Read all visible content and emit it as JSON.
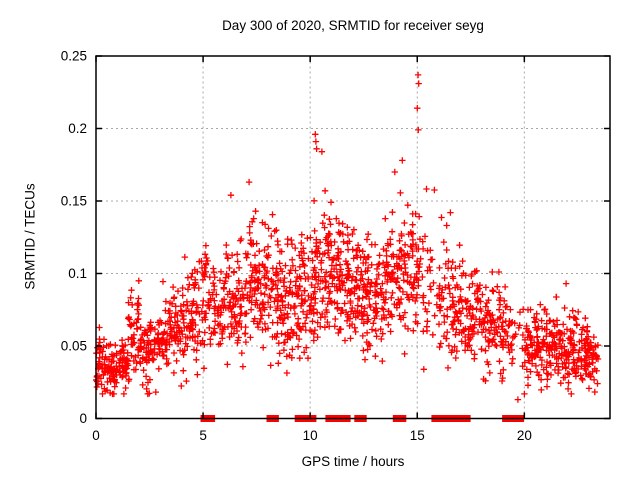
{
  "title": "Day 300 of 2020, SRMTID for receiver seyg",
  "chart_data": {
    "type": "scatter",
    "title": "Day 300 of 2020, SRMTID for receiver seyg",
    "xlabel": "GPS time / hours",
    "ylabel": "SRMTID / TECUs",
    "xlim": [
      0,
      24
    ],
    "ylim": [
      0,
      0.25
    ],
    "xticks": {
      "values": [
        0,
        5,
        10,
        15,
        20
      ],
      "labels": [
        "0",
        "5",
        "10",
        "15",
        "20"
      ]
    },
    "yticks": {
      "values": [
        0,
        0.05,
        0.1,
        0.15,
        0.2,
        0.25
      ],
      "labels": [
        "0",
        "0.05",
        "0.1",
        "0.15",
        "0.2",
        "0.25"
      ]
    },
    "grid": true,
    "legend": "none",
    "marker": "plus",
    "marker_color": "#ff0000",
    "grid_color": "#a8a8a8",
    "axis_color": "#000000",
    "background_color": "#ffffff",
    "seed": 300,
    "scatter_bins_format": [
      "hour_start",
      "hour_end",
      "count",
      "mean_TECUs",
      "sd_TECUs"
    ],
    "scatter_bins": [
      [
        0.0,
        0.5,
        48,
        0.037,
        0.01
      ],
      [
        0.5,
        1.0,
        48,
        0.033,
        0.008
      ],
      [
        1.0,
        1.5,
        48,
        0.037,
        0.009
      ],
      [
        1.5,
        2.0,
        42,
        0.055,
        0.016
      ],
      [
        2.0,
        2.5,
        40,
        0.048,
        0.012
      ],
      [
        2.5,
        3.0,
        40,
        0.052,
        0.013
      ],
      [
        3.0,
        3.5,
        40,
        0.058,
        0.014
      ],
      [
        3.5,
        4.0,
        40,
        0.064,
        0.016
      ],
      [
        4.0,
        4.5,
        42,
        0.07,
        0.017
      ],
      [
        4.5,
        5.0,
        42,
        0.075,
        0.018
      ],
      [
        5.0,
        5.5,
        34,
        0.08,
        0.018
      ],
      [
        5.5,
        6.0,
        40,
        0.076,
        0.015
      ],
      [
        6.0,
        6.5,
        42,
        0.084,
        0.02
      ],
      [
        6.5,
        7.0,
        42,
        0.08,
        0.017
      ],
      [
        7.0,
        7.5,
        45,
        0.094,
        0.022
      ],
      [
        7.5,
        8.0,
        45,
        0.09,
        0.019
      ],
      [
        8.0,
        8.5,
        45,
        0.086,
        0.021
      ],
      [
        8.5,
        9.0,
        45,
        0.077,
        0.023
      ],
      [
        9.0,
        9.5,
        45,
        0.086,
        0.02
      ],
      [
        9.5,
        10.0,
        45,
        0.091,
        0.019
      ],
      [
        10.0,
        10.5,
        50,
        0.1,
        0.024
      ],
      [
        10.5,
        11.0,
        50,
        0.104,
        0.021
      ],
      [
        11.0,
        11.5,
        50,
        0.1,
        0.021
      ],
      [
        11.5,
        12.0,
        48,
        0.095,
        0.021
      ],
      [
        12.0,
        12.5,
        45,
        0.094,
        0.021
      ],
      [
        12.5,
        13.0,
        45,
        0.09,
        0.019
      ],
      [
        13.0,
        13.5,
        45,
        0.089,
        0.019
      ],
      [
        13.5,
        14.0,
        45,
        0.094,
        0.022
      ],
      [
        14.0,
        14.5,
        45,
        0.099,
        0.024
      ],
      [
        14.5,
        15.0,
        45,
        0.104,
        0.026
      ],
      [
        15.0,
        15.5,
        28,
        0.105,
        0.032
      ],
      [
        15.5,
        16.0,
        14,
        0.09,
        0.026
      ],
      [
        16.0,
        16.5,
        36,
        0.084,
        0.021
      ],
      [
        16.5,
        17.0,
        42,
        0.08,
        0.021
      ],
      [
        17.0,
        17.5,
        40,
        0.075,
        0.017
      ],
      [
        17.5,
        18.0,
        40,
        0.072,
        0.017
      ],
      [
        18.0,
        18.5,
        40,
        0.065,
        0.015
      ],
      [
        18.5,
        19.0,
        40,
        0.062,
        0.015
      ],
      [
        19.0,
        19.5,
        30,
        0.06,
        0.014
      ],
      [
        19.5,
        20.0,
        10,
        0.055,
        0.016
      ],
      [
        20.0,
        20.5,
        42,
        0.05,
        0.013
      ],
      [
        20.5,
        21.0,
        45,
        0.048,
        0.013
      ],
      [
        21.0,
        21.5,
        45,
        0.05,
        0.013
      ],
      [
        21.5,
        22.0,
        45,
        0.045,
        0.012
      ],
      [
        22.0,
        22.5,
        45,
        0.048,
        0.013
      ],
      [
        22.5,
        23.0,
        45,
        0.045,
        0.012
      ],
      [
        23.0,
        23.45,
        40,
        0.042,
        0.011
      ]
    ],
    "value_clamp": [
      0.017,
      0.207
    ],
    "notable_points": [
      [
        15.04,
        0.237
      ],
      [
        15.07,
        0.231
      ],
      [
        15.0,
        0.214
      ],
      [
        15.05,
        0.199
      ],
      [
        10.24,
        0.196
      ],
      [
        10.27,
        0.191
      ],
      [
        10.3,
        0.186
      ],
      [
        10.55,
        0.184
      ],
      [
        14.3,
        0.178
      ],
      [
        13.95,
        0.17
      ],
      [
        7.15,
        0.163
      ],
      [
        6.3,
        0.154
      ],
      [
        16.55,
        0.142
      ],
      [
        2.0,
        0.095
      ],
      [
        21.95,
        0.093
      ],
      [
        19.7,
        0.013
      ]
    ],
    "baseline_marker_segments_hours": [
      [
        5.02,
        5.42
      ],
      [
        8.1,
        8.4
      ],
      [
        9.42,
        9.65
      ],
      [
        9.88,
        10.15
      ],
      [
        10.85,
        11.3
      ],
      [
        11.32,
        11.75
      ],
      [
        12.2,
        12.5
      ],
      [
        14.0,
        14.35
      ],
      [
        15.8,
        16.75
      ],
      [
        16.85,
        17.05
      ],
      [
        17.15,
        17.35
      ],
      [
        19.1,
        19.6
      ],
      [
        19.68,
        19.85
      ]
    ]
  }
}
